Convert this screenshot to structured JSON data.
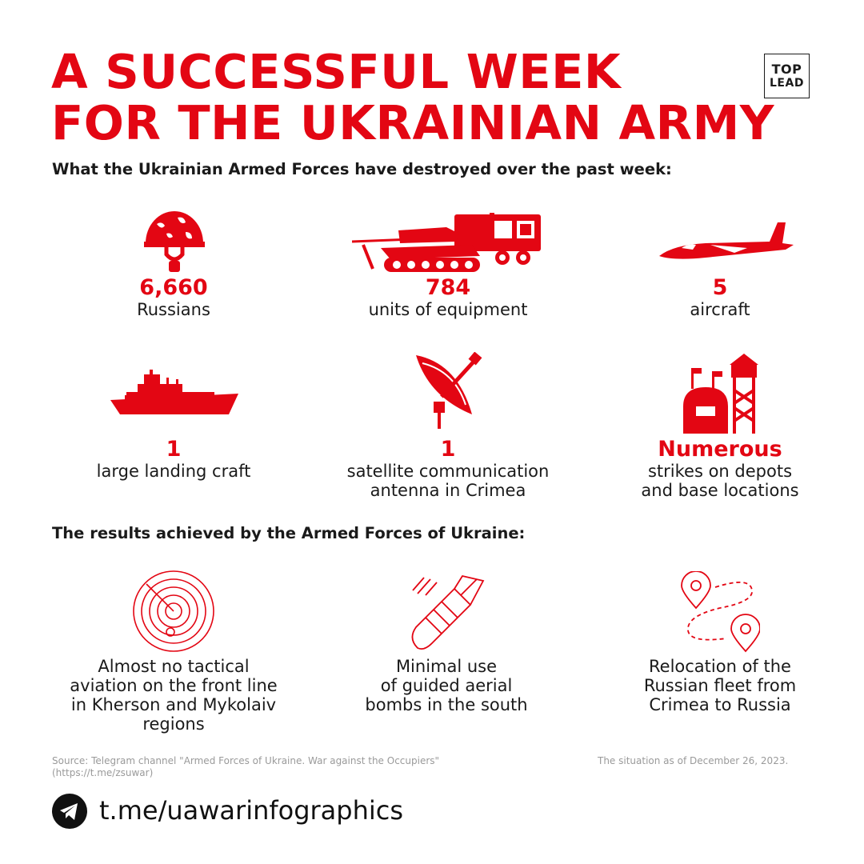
{
  "title": {
    "line1": "A SUCCESSFUL WEEK",
    "line2": "FOR THE UKRAINIAN ARMY"
  },
  "logo": {
    "line1": "TOP",
    "line2": "LEAD"
  },
  "destroyed": {
    "heading": "What the Ukrainian Armed Forces have destroyed over the past week:",
    "items": [
      {
        "icon": "helmet-icon",
        "value": "6,660",
        "label": "Russians"
      },
      {
        "icon": "tank-and-truck-icon",
        "value": "784",
        "label": "units of equipment"
      },
      {
        "icon": "aircraft-icon",
        "value": "5",
        "label": "aircraft"
      },
      {
        "icon": "ship-icon",
        "value": "1",
        "label": "large landing craft"
      },
      {
        "icon": "satellite-dish-icon",
        "value": "1",
        "label": "satellite communication\nantenna in Crimea"
      },
      {
        "icon": "depot-tower-icon",
        "value": "Numerous",
        "label": "strikes on depots\nand base locations"
      }
    ]
  },
  "results": {
    "heading": "The results achieved by the Armed Forces of Ukraine:",
    "items": [
      {
        "icon": "radar-icon",
        "text": "Almost no tactical\naviation on the front line\nin Kherson and Mykolaiv\nregions"
      },
      {
        "icon": "bomb-icon",
        "text": "Minimal use\nof guided aerial\nbombs in the south"
      },
      {
        "icon": "route-pins-icon",
        "text": "Relocation of the\nRussian fleet from\nCrimea to Russia"
      }
    ]
  },
  "footer": {
    "source_line1": "Source: Telegram channel \"Armed Forces of Ukraine. War against the Occupiers\"",
    "source_line2": "(https://t.me/zsuwar)",
    "date_note": "The situation as of December 26, 2023.",
    "link": "t.me/uawarinfographics",
    "link_icon": "telegram-icon"
  },
  "colors": {
    "accent": "#e30613",
    "text": "#1a1a1a",
    "muted": "#9a9a9a"
  }
}
